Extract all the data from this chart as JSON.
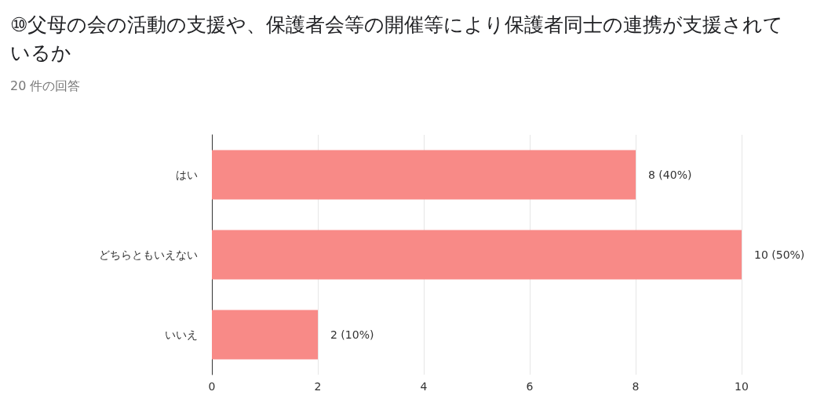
{
  "chart_data": {
    "type": "bar",
    "orientation": "horizontal",
    "title": "⑩父母の会の活動の支援や、保護者会等の開催等により保護者同士の連携が支援されているか",
    "subtitle": "20 件の回答",
    "categories": [
      "はい",
      "どちらともいえない",
      "いいえ"
    ],
    "values": [
      8,
      10,
      2
    ],
    "color": "#f88a87",
    "value_labels": [
      "8 (40%)",
      "10 (50%)",
      "2 (10%)"
    ],
    "xlim": [
      0,
      10
    ],
    "xticks": [
      0,
      2,
      4,
      6,
      8,
      10
    ],
    "grid": "x"
  }
}
